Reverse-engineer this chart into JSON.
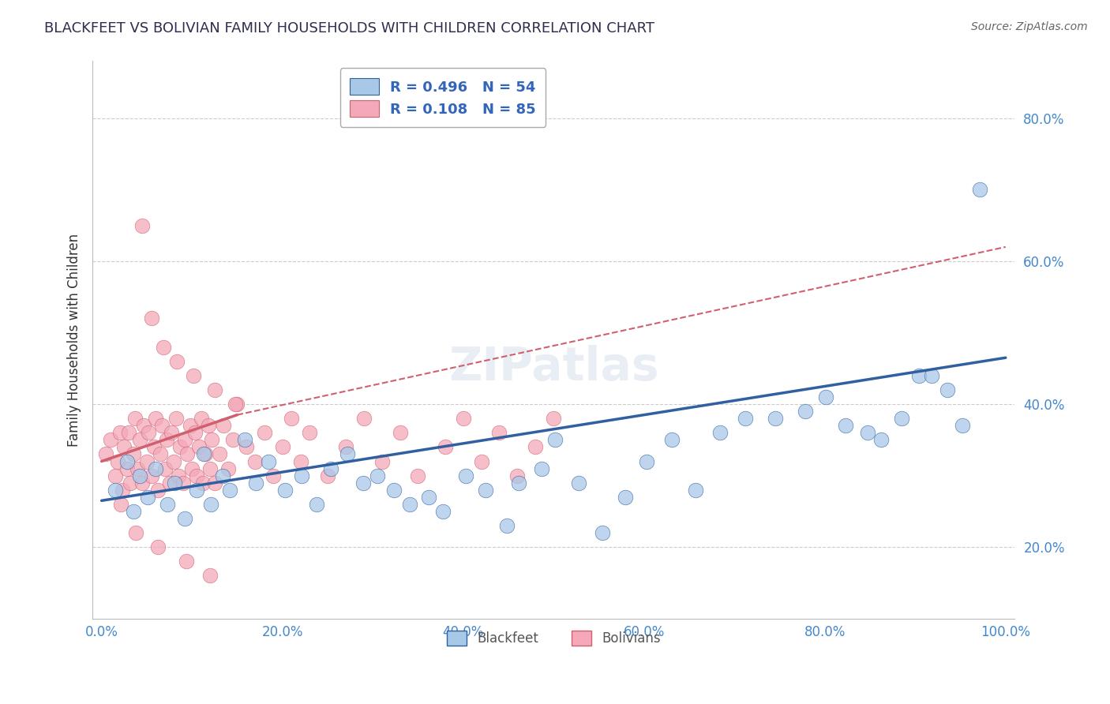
{
  "title": "BLACKFEET VS BOLIVIAN FAMILY HOUSEHOLDS WITH CHILDREN CORRELATION CHART",
  "source": "Source: ZipAtlas.com",
  "ylabel": "Family Households with Children",
  "x_tick_labels": [
    "0.0%",
    "20.0%",
    "40.0%",
    "60.0%",
    "80.0%",
    "100.0%"
  ],
  "y_tick_labels": [
    "20.0%",
    "40.0%",
    "60.0%",
    "80.0%"
  ],
  "xlim": [
    -1,
    101
  ],
  "ylim": [
    0.1,
    0.88
  ],
  "legend_label_1": "Blackfeet",
  "legend_label_2": "Bolivians",
  "R1": 0.496,
  "N1": 54,
  "R2": 0.108,
  "N2": 85,
  "color_blue": "#A8C8E8",
  "color_pink": "#F4A8B8",
  "color_blue_line": "#3060A0",
  "color_pink_line": "#D06070",
  "background_color": "#FFFFFF",
  "grid_color": "#CCCCCC",
  "blackfeet_x": [
    1.5,
    2.8,
    3.5,
    4.2,
    5.1,
    6.0,
    7.3,
    8.1,
    9.2,
    10.5,
    11.3,
    12.1,
    13.4,
    14.2,
    15.8,
    17.1,
    18.5,
    20.3,
    22.1,
    23.8,
    25.4,
    27.2,
    28.9,
    30.5,
    32.3,
    34.1,
    36.2,
    37.8,
    40.3,
    42.5,
    44.8,
    46.1,
    48.7,
    50.2,
    52.8,
    55.4,
    57.9,
    60.3,
    63.1,
    65.7,
    68.4,
    71.2,
    74.5,
    77.8,
    80.1,
    82.3,
    84.7,
    86.2,
    88.5,
    90.4,
    91.8,
    93.6,
    95.2,
    97.1
  ],
  "blackfeet_y": [
    0.28,
    0.32,
    0.25,
    0.3,
    0.27,
    0.31,
    0.26,
    0.29,
    0.24,
    0.28,
    0.33,
    0.26,
    0.3,
    0.28,
    0.35,
    0.29,
    0.32,
    0.28,
    0.3,
    0.26,
    0.31,
    0.33,
    0.29,
    0.3,
    0.28,
    0.26,
    0.27,
    0.25,
    0.3,
    0.28,
    0.23,
    0.29,
    0.31,
    0.35,
    0.29,
    0.22,
    0.27,
    0.32,
    0.35,
    0.28,
    0.36,
    0.38,
    0.38,
    0.39,
    0.41,
    0.37,
    0.36,
    0.35,
    0.38,
    0.44,
    0.44,
    0.42,
    0.37,
    0.7
  ],
  "bolivian_x": [
    0.5,
    1.0,
    1.5,
    1.8,
    2.0,
    2.3,
    2.5,
    2.8,
    3.0,
    3.2,
    3.5,
    3.7,
    4.0,
    4.2,
    4.5,
    4.7,
    5.0,
    5.2,
    5.5,
    5.8,
    6.0,
    6.2,
    6.5,
    6.7,
    7.0,
    7.2,
    7.5,
    7.7,
    8.0,
    8.2,
    8.5,
    8.7,
    9.0,
    9.2,
    9.5,
    9.8,
    10.0,
    10.3,
    10.5,
    10.8,
    11.0,
    11.2,
    11.5,
    11.8,
    12.0,
    12.2,
    12.5,
    13.0,
    13.5,
    14.0,
    14.5,
    15.0,
    16.0,
    17.0,
    18.0,
    19.0,
    20.0,
    21.0,
    22.0,
    23.0,
    25.0,
    27.0,
    29.0,
    31.0,
    33.0,
    35.0,
    38.0,
    40.0,
    42.0,
    44.0,
    46.0,
    48.0,
    50.0,
    4.5,
    5.5,
    6.8,
    8.3,
    10.2,
    12.5,
    14.8,
    2.1,
    3.8,
    6.2,
    9.4,
    12.0
  ],
  "bolivian_y": [
    0.33,
    0.35,
    0.3,
    0.32,
    0.36,
    0.28,
    0.34,
    0.31,
    0.36,
    0.29,
    0.33,
    0.38,
    0.31,
    0.35,
    0.29,
    0.37,
    0.32,
    0.36,
    0.3,
    0.34,
    0.38,
    0.28,
    0.33,
    0.37,
    0.31,
    0.35,
    0.29,
    0.36,
    0.32,
    0.38,
    0.3,
    0.34,
    0.29,
    0.35,
    0.33,
    0.37,
    0.31,
    0.36,
    0.3,
    0.34,
    0.38,
    0.29,
    0.33,
    0.37,
    0.31,
    0.35,
    0.29,
    0.33,
    0.37,
    0.31,
    0.35,
    0.4,
    0.34,
    0.32,
    0.36,
    0.3,
    0.34,
    0.38,
    0.32,
    0.36,
    0.3,
    0.34,
    0.38,
    0.32,
    0.36,
    0.3,
    0.34,
    0.38,
    0.32,
    0.36,
    0.3,
    0.34,
    0.38,
    0.65,
    0.52,
    0.48,
    0.46,
    0.44,
    0.42,
    0.4,
    0.26,
    0.22,
    0.2,
    0.18,
    0.16
  ],
  "blue_line_x0": 0,
  "blue_line_x1": 100,
  "blue_line_y0": 0.265,
  "blue_line_y1": 0.465,
  "pink_line_solid_x0": 0,
  "pink_line_solid_x1": 15,
  "pink_line_solid_y0": 0.32,
  "pink_line_solid_y1": 0.385,
  "pink_line_dash_x0": 15,
  "pink_line_dash_x1": 100,
  "pink_line_dash_y0": 0.385,
  "pink_line_dash_y1": 0.62
}
